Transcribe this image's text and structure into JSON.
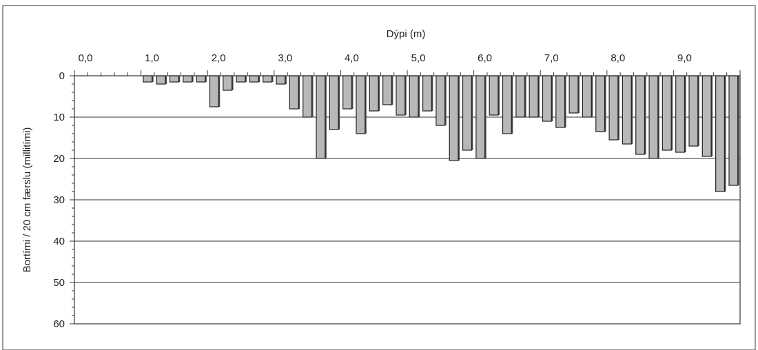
{
  "chart_data": {
    "type": "bar",
    "xlabel": "Dýpi (m)",
    "ylabel": "Bortími / 20 cm færslu (millitími)",
    "x_axis_position": "top",
    "y_axis_inverted": true,
    "xlim": [
      0,
      10
    ],
    "ylim": [
      0,
      60
    ],
    "x_ticks": [
      "0,0",
      "1,0",
      "2,0",
      "3,0",
      "4,0",
      "5,0",
      "6,0",
      "7,0",
      "8,0",
      "9,0"
    ],
    "y_ticks": [
      "0",
      "10",
      "20",
      "30",
      "40",
      "50",
      "60"
    ],
    "grid": "horizontal",
    "colors": {
      "bar_fill": "#b8b8b8",
      "bar_stroke": "#222222",
      "grid": "#333333"
    },
    "x": [
      1.0,
      1.2,
      1.4,
      1.6,
      1.8,
      2.0,
      2.2,
      2.4,
      2.6,
      2.8,
      3.0,
      3.2,
      3.4,
      3.6,
      3.8,
      4.0,
      4.2,
      4.4,
      4.6,
      4.8,
      5.0,
      5.2,
      5.4,
      5.6,
      5.8,
      6.0,
      6.2,
      6.4,
      6.6,
      6.8,
      7.0,
      7.2,
      7.4,
      7.6,
      7.8,
      8.0,
      8.2,
      8.4,
      8.6,
      8.8,
      9.0,
      9.2,
      9.4,
      9.6,
      9.8
    ],
    "values": [
      1.5,
      2.0,
      1.5,
      1.5,
      1.5,
      7.5,
      3.5,
      1.5,
      1.5,
      1.5,
      2.0,
      8.0,
      10.0,
      20.0,
      13.0,
      8.0,
      14.0,
      8.5,
      7.0,
      9.5,
      10.0,
      8.5,
      12.0,
      20.5,
      18.0,
      20.0,
      9.5,
      14.0,
      10.0,
      10.0,
      11.0,
      12.5,
      9.0,
      10.0,
      13.5,
      15.5,
      16.5,
      19.0,
      20.0,
      18.0,
      18.5,
      17.0,
      19.5,
      28.0,
      26.5
    ]
  }
}
